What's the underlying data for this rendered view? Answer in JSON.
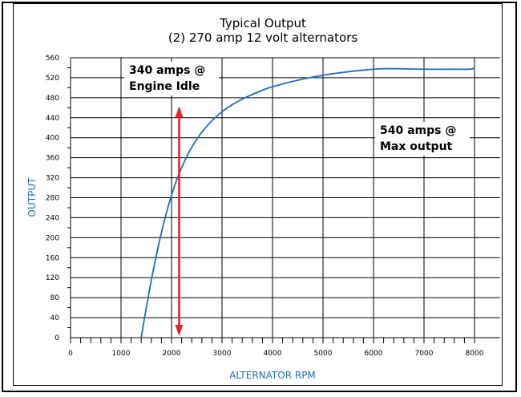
{
  "chart_data": {
    "type": "line",
    "title": "Typical Output",
    "subtitle": "(2) 270 amp 12 volt alternators",
    "xlabel": "ALTERNATOR RPM",
    "ylabel": "OUTPUT",
    "xlim": [
      0,
      8000
    ],
    "ylim": [
      0,
      560
    ],
    "xticks": [
      0,
      1000,
      2000,
      3000,
      4000,
      5000,
      6000,
      7000,
      8000
    ],
    "yticks": [
      0,
      40,
      80,
      120,
      160,
      200,
      240,
      280,
      320,
      360,
      400,
      440,
      480,
      520,
      560
    ],
    "grid": true,
    "series": [
      {
        "color": "#1f6fbf",
        "x": [
          1400,
          1500,
          1600,
          1700,
          1800,
          1900,
          2000,
          2100,
          2200,
          2300,
          2400,
          2500,
          2600,
          2800,
          3000,
          3200,
          3500,
          3800,
          4000,
          4500,
          5000,
          5500,
          6000,
          6200,
          6500,
          7000,
          7500,
          7900,
          8000
        ],
        "y": [
          0,
          60,
          115,
          165,
          210,
          250,
          285,
          315,
          340,
          362,
          381,
          397,
          411,
          434,
          452,
          466,
          482,
          495,
          502,
          515,
          525,
          532,
          537,
          538,
          538,
          537,
          537,
          537,
          540
        ]
      }
    ],
    "annotations": [
      {
        "text": [
          "340 amps @",
          "Engine Idle"
        ]
      },
      {
        "text": [
          "540 amps @",
          "Max output"
        ]
      }
    ],
    "marker_arrow": {
      "x": 2150,
      "y_from": 0,
      "y_to": 460,
      "color": "#e8242b"
    }
  }
}
